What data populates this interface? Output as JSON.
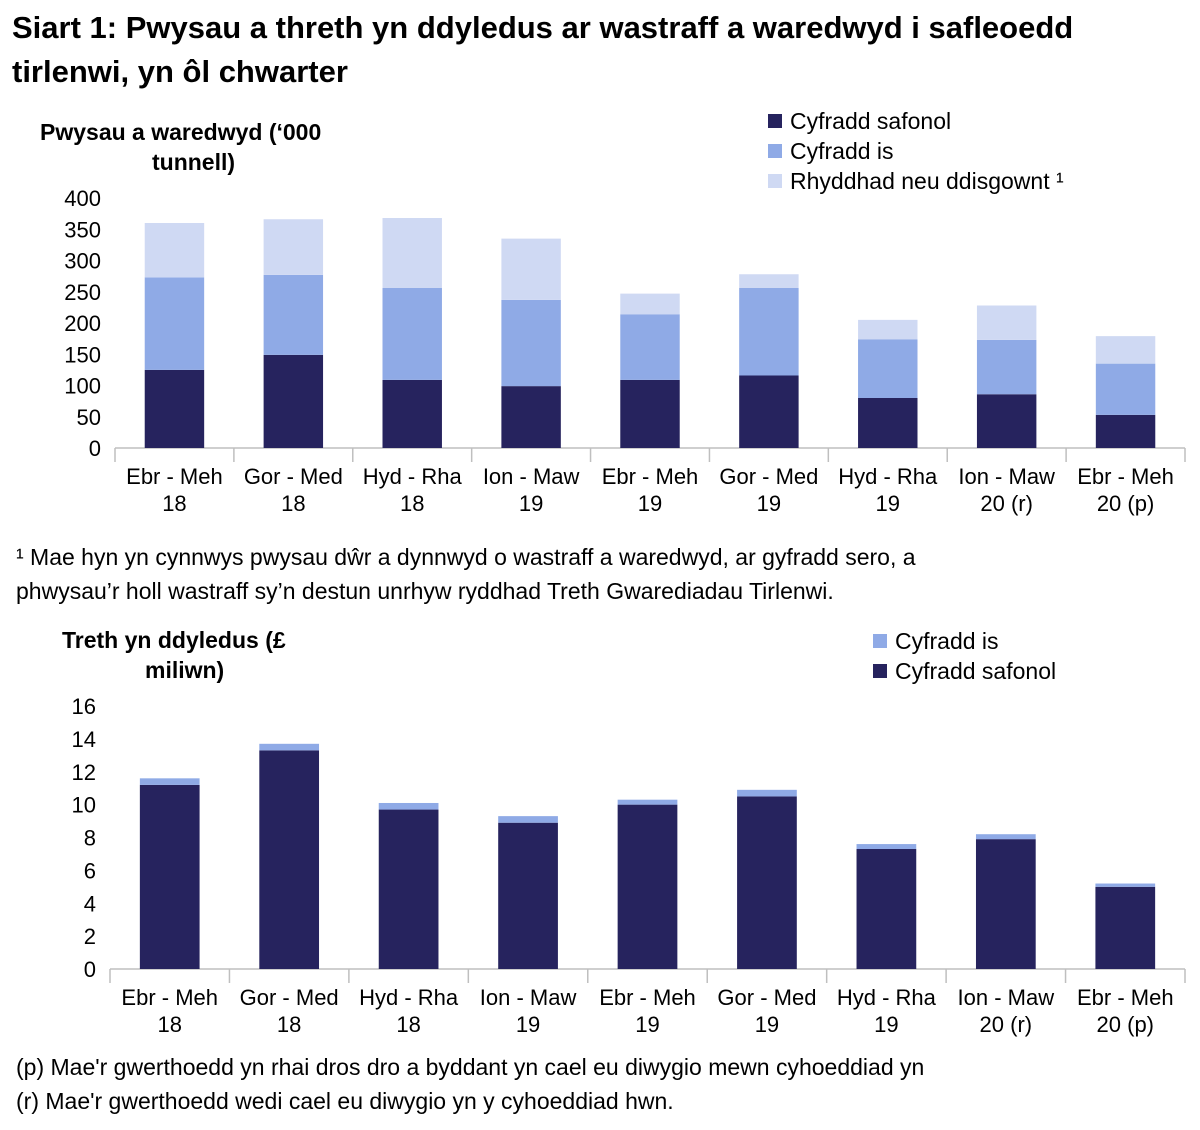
{
  "title": "Siart 1: Pwysau a threth yn ddyledus ar wastraff a waredwyd i safleoedd tirlenwi, yn ôl chwarter",
  "colors": {
    "standard": "#26235e",
    "lower": "#8faae6",
    "relief": "#cfd9f3",
    "axis": "#bfbfbf"
  },
  "chart_data": [
    {
      "type": "bar",
      "stacked": true,
      "ylabel": "Pwysau a waredwyd (‘000 tunnell)",
      "ylabel_lines": [
        "Pwysau a waredwyd (‘000",
        "tunnell)"
      ],
      "ylim": [
        0,
        400
      ],
      "yticks": [
        0,
        50,
        100,
        150,
        200,
        250,
        300,
        350,
        400
      ],
      "categories": [
        [
          "Ebr - Meh",
          "18"
        ],
        [
          "Gor - Med",
          "18"
        ],
        [
          "Hyd - Rha",
          "18"
        ],
        [
          "Ion - Maw",
          "19"
        ],
        [
          "Ebr - Meh",
          "19"
        ],
        [
          "Gor - Med",
          "19"
        ],
        [
          "Hyd - Rha",
          "19"
        ],
        [
          "Ion - Maw",
          "20 (r)"
        ],
        [
          "Ebr - Meh",
          "20 (p)"
        ]
      ],
      "series": [
        {
          "name": "Cyfradd safonol",
          "color_key": "standard",
          "values": [
            125,
            149,
            109,
            99,
            109,
            116,
            80,
            86,
            53
          ]
        },
        {
          "name": "Cyfradd is",
          "color_key": "lower",
          "values": [
            148,
            128,
            147,
            138,
            105,
            140,
            94,
            87,
            82
          ]
        },
        {
          "name": "Rhyddhad neu ddisgownt ¹",
          "color_key": "relief",
          "values": [
            87,
            89,
            112,
            98,
            33,
            22,
            31,
            55,
            44
          ]
        }
      ],
      "legend_order": [
        0,
        1,
        2
      ],
      "legend_position": "top-right"
    },
    {
      "type": "bar",
      "stacked": true,
      "ylabel": "Treth yn ddyledus (£ miliwn)",
      "ylabel_lines": [
        "Treth yn ddyledus (£",
        "miliwn)"
      ],
      "ylim": [
        0,
        16
      ],
      "yticks": [
        0,
        2,
        4,
        6,
        8,
        10,
        12,
        14,
        16
      ],
      "categories": [
        [
          "Ebr - Meh",
          "18"
        ],
        [
          "Gor - Med",
          "18"
        ],
        [
          "Hyd - Rha",
          "18"
        ],
        [
          "Ion - Maw",
          "19"
        ],
        [
          "Ebr - Meh",
          "19"
        ],
        [
          "Gor - Med",
          "19"
        ],
        [
          "Hyd - Rha",
          "19"
        ],
        [
          "Ion - Maw",
          "20 (r)"
        ],
        [
          "Ebr - Meh",
          "20 (p)"
        ]
      ],
      "series": [
        {
          "name": "Cyfradd safonol",
          "color_key": "standard",
          "values": [
            11.2,
            13.3,
            9.7,
            8.9,
            10.0,
            10.5,
            7.3,
            7.9,
            5.0
          ]
        },
        {
          "name": "Cyfradd is",
          "color_key": "lower",
          "values": [
            0.4,
            0.4,
            0.4,
            0.4,
            0.3,
            0.4,
            0.3,
            0.3,
            0.2
          ]
        }
      ],
      "legend_order": [
        1,
        0
      ],
      "legend_position": "top-right"
    }
  ],
  "notes": {
    "footnote_1_line1": "¹ Mae hyn yn cynnwys pwysau dŵr a dynnwyd o wastraff a waredwyd, ar gyfradd sero, a",
    "footnote_1_line2": "phwysau’r holl wastraff sy’n destun unrhyw ryddhad Treth Gwarediadau Tirlenwi.",
    "provisional": "(p) Mae'r gwerthoedd yn rhai dros dro a byddant yn cael eu diwygio mewn cyhoeddiad yn",
    "revised": "(r) Mae'r gwerthoedd wedi cael eu diwygio yn y cyhoeddiad hwn."
  }
}
